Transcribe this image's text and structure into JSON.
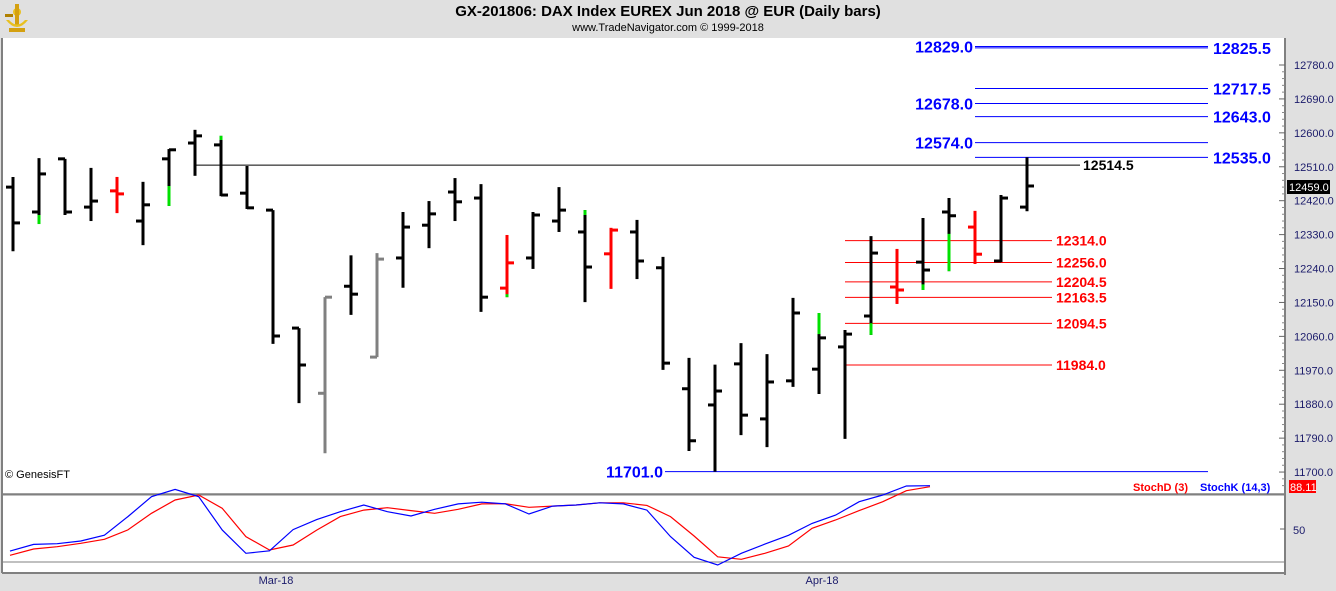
{
  "header": {
    "title": "GX-201806:  DAX Index EUREX Jun 2018 @ EUR  (Daily bars)",
    "subtitle": "www.TradeNavigator.com © 1999-2018",
    "logo_icon": "sextant-logo-icon"
  },
  "watermark": "© GenesisFT",
  "colors": {
    "bar": "#000000",
    "bar_red": "#ff0000",
    "bar_gray": "#808080",
    "bar_green": "#00e000",
    "level_blue": "#0000ff",
    "level_red": "#ff0000",
    "stoch_k": "#0000ff",
    "stoch_d": "#ff0000"
  },
  "chart_data": [
    {
      "type": "ohlc",
      "ylim": [
        11670,
        12850
      ],
      "y_ticks": [
        "12780.0",
        "12690.0",
        "12600.0",
        "12510.0",
        "12420.0",
        "12330.0",
        "12240.0",
        "12150.0",
        "12060.0",
        "11970.0",
        "11880.0",
        "11790.0",
        "11700.0"
      ],
      "x_tick_labels": [
        "Mar-18",
        "Apr-18"
      ],
      "last_price": "12459.0",
      "bars": [
        {
          "o": 12456,
          "h": 12483,
          "l": 12286,
          "c": 12361,
          "color": "black"
        },
        {
          "o": 12390,
          "h": 12533,
          "l": 12358,
          "c": 12491,
          "color": "black",
          "green": [
            12358,
            12382
          ]
        },
        {
          "o": 12531,
          "h": 12531,
          "l": 12382,
          "c": 12390,
          "color": "black"
        },
        {
          "o": 12403,
          "h": 12507,
          "l": 12366,
          "c": 12419,
          "color": "black"
        },
        {
          "o": 12446,
          "h": 12483,
          "l": 12387,
          "c": 12438,
          "color": "red"
        },
        {
          "o": 12366,
          "h": 12470,
          "l": 12302,
          "c": 12409,
          "color": "black"
        },
        {
          "o": 12531,
          "h": 12557,
          "l": 12406,
          "c": 12555,
          "color": "black",
          "green": [
            12406,
            12459
          ]
        },
        {
          "o": 12573,
          "h": 12608,
          "l": 12486,
          "c": 12592,
          "color": "black"
        },
        {
          "o": 12568,
          "h": 12592,
          "l": 12432,
          "c": 12435,
          "color": "black",
          "green": [
            12581,
            12592
          ]
        },
        {
          "o": 12440,
          "h": 12512,
          "l": 12398,
          "c": 12401,
          "color": "black"
        },
        {
          "o": 12395,
          "h": 12395,
          "l": 12040,
          "c": 12061,
          "color": "black"
        },
        {
          "o": 12082,
          "h": 12082,
          "l": 11883,
          "c": 11984,
          "color": "black"
        },
        {
          "o": 11909,
          "h": 12164,
          "l": 11750,
          "c": 12164,
          "color": "gray"
        },
        {
          "o": 12193,
          "h": 12275,
          "l": 12117,
          "c": 12172,
          "color": "black"
        },
        {
          "o": 12005,
          "h": 12281,
          "l": 12005,
          "c": 12265,
          "color": "gray"
        },
        {
          "o": 12268,
          "h": 12390,
          "l": 12189,
          "c": 12350,
          "color": "black"
        },
        {
          "o": 12355,
          "h": 12419,
          "l": 12294,
          "c": 12385,
          "color": "black"
        },
        {
          "o": 12443,
          "h": 12480,
          "l": 12366,
          "c": 12417,
          "color": "black"
        },
        {
          "o": 12427,
          "h": 12464,
          "l": 12125,
          "c": 12164,
          "color": "black"
        },
        {
          "o": 12188,
          "h": 12329,
          "l": 12164,
          "c": 12255,
          "color": "red",
          "green": [
            12164,
            12172
          ]
        },
        {
          "o": 12268,
          "h": 12390,
          "l": 12239,
          "c": 12382,
          "color": "black"
        },
        {
          "o": 12366,
          "h": 12456,
          "l": 12337,
          "c": 12395,
          "color": "black"
        },
        {
          "o": 12337,
          "h": 12395,
          "l": 12151,
          "c": 12244,
          "color": "black",
          "green": [
            12382,
            12395
          ]
        },
        {
          "o": 12279,
          "h": 12348,
          "l": 12186,
          "c": 12342,
          "color": "red"
        },
        {
          "o": 12337,
          "h": 12369,
          "l": 12212,
          "c": 12260,
          "color": "black"
        },
        {
          "o": 12242,
          "h": 12271,
          "l": 11971,
          "c": 11989,
          "color": "black"
        },
        {
          "o": 11921,
          "h": 12003,
          "l": 11756,
          "c": 11783,
          "color": "black"
        },
        {
          "o": 11878,
          "h": 11985,
          "l": 11701,
          "c": 11915,
          "color": "black"
        },
        {
          "o": 11987,
          "h": 12042,
          "l": 11798,
          "c": 11851,
          "color": "black"
        },
        {
          "o": 11841,
          "h": 12013,
          "l": 11766,
          "c": 11939,
          "color": "black"
        },
        {
          "o": 11942,
          "h": 12162,
          "l": 11926,
          "c": 12122,
          "color": "black"
        },
        {
          "o": 11973,
          "h": 12122,
          "l": 11907,
          "c": 12056,
          "color": "black",
          "green": [
            12066,
            12122
          ]
        },
        {
          "o": 12032,
          "h": 12077,
          "l": 11788,
          "c": 12066,
          "color": "black"
        },
        {
          "o": 12114,
          "h": 12326,
          "l": 12064,
          "c": 12281,
          "color": "black",
          "green": [
            12064,
            12095
          ]
        },
        {
          "o": 12191,
          "h": 12292,
          "l": 12146,
          "c": 12183,
          "color": "red"
        },
        {
          "o": 12257,
          "h": 12374,
          "l": 12183,
          "c": 12236,
          "color": "black",
          "green": [
            12183,
            12198
          ]
        },
        {
          "o": 12390,
          "h": 12427,
          "l": 12233,
          "c": 12380,
          "color": "black",
          "green": [
            12233,
            12332
          ]
        },
        {
          "o": 12350,
          "h": 12393,
          "l": 12252,
          "c": 12278,
          "color": "red"
        },
        {
          "o": 12260,
          "h": 12435,
          "l": 12257,
          "c": 12427,
          "color": "black"
        },
        {
          "o": 12403,
          "h": 12535,
          "l": 12392,
          "c": 12459,
          "color": "black"
        }
      ],
      "levels": [
        {
          "value": 12829.0,
          "label": "12829.0",
          "color": "blue",
          "side": "left"
        },
        {
          "value": 12825.5,
          "label": "12825.5",
          "color": "blue",
          "side": "right"
        },
        {
          "value": 12717.5,
          "label": "12717.5",
          "color": "blue",
          "side": "right"
        },
        {
          "value": 12678.0,
          "label": "12678.0",
          "color": "blue",
          "side": "left"
        },
        {
          "value": 12643.0,
          "label": "12643.0",
          "color": "blue",
          "side": "right"
        },
        {
          "value": 12574.0,
          "label": "12574.0",
          "color": "blue",
          "side": "left"
        },
        {
          "value": 12535.0,
          "label": "12535.0",
          "color": "blue",
          "side": "right"
        },
        {
          "value": 11701.0,
          "label": "11701.0",
          "color": "blue",
          "side": "left-low"
        },
        {
          "value": 12514.5,
          "label": "12514.5",
          "color": "black",
          "side": "mid"
        },
        {
          "value": 12314.0,
          "label": "12314.0",
          "color": "red",
          "side": "red"
        },
        {
          "value": 12256.0,
          "label": "12256.0",
          "color": "red",
          "side": "red"
        },
        {
          "value": 12204.5,
          "label": "12204.5",
          "color": "red",
          "side": "red"
        },
        {
          "value": 12163.5,
          "label": "12163.5",
          "color": "red",
          "side": "red"
        },
        {
          "value": 12094.5,
          "label": "12094.5",
          "color": "red",
          "side": "red"
        },
        {
          "value": 11984.0,
          "label": "11984.0",
          "color": "red",
          "side": "red"
        }
      ]
    },
    {
      "type": "line",
      "y_ticks": [
        "50"
      ],
      "ylim": [
        10,
        100
      ],
      "reference_lines": [
        20,
        80
      ],
      "last_value": "88.11",
      "series": [
        {
          "name": "StochD (3)",
          "color": "red",
          "values": [
            26,
            31.6,
            33.7,
            36.7,
            40.3,
            48.7,
            63.6,
            75.5,
            80,
            68,
            42.7,
            30.7,
            35.2,
            48.6,
            60.6,
            66.5,
            68.6,
            66,
            63.6,
            67.2,
            72,
            72.2,
            69,
            70,
            71,
            73,
            73,
            70.7,
            60.6,
            43.3,
            24.7,
            22.4,
            27.8,
            34.3,
            50.2,
            57.6,
            66,
            74,
            83.8,
            87.4
          ]
        },
        {
          "name": "StochK (14,3)",
          "color": "blue",
          "values": [
            29.8,
            35.8,
            36.4,
            38.8,
            44,
            60.6,
            78.5,
            85,
            78.5,
            48.6,
            27.8,
            30,
            49,
            58,
            65,
            71,
            65,
            61.2,
            67.2,
            72,
            73.5,
            72,
            63,
            70,
            71,
            73,
            72,
            66.5,
            42.7,
            24.2,
            17.3,
            27.8,
            36,
            43.9,
            54.6,
            62,
            74,
            80,
            88,
            88.3
          ]
        }
      ]
    }
  ]
}
